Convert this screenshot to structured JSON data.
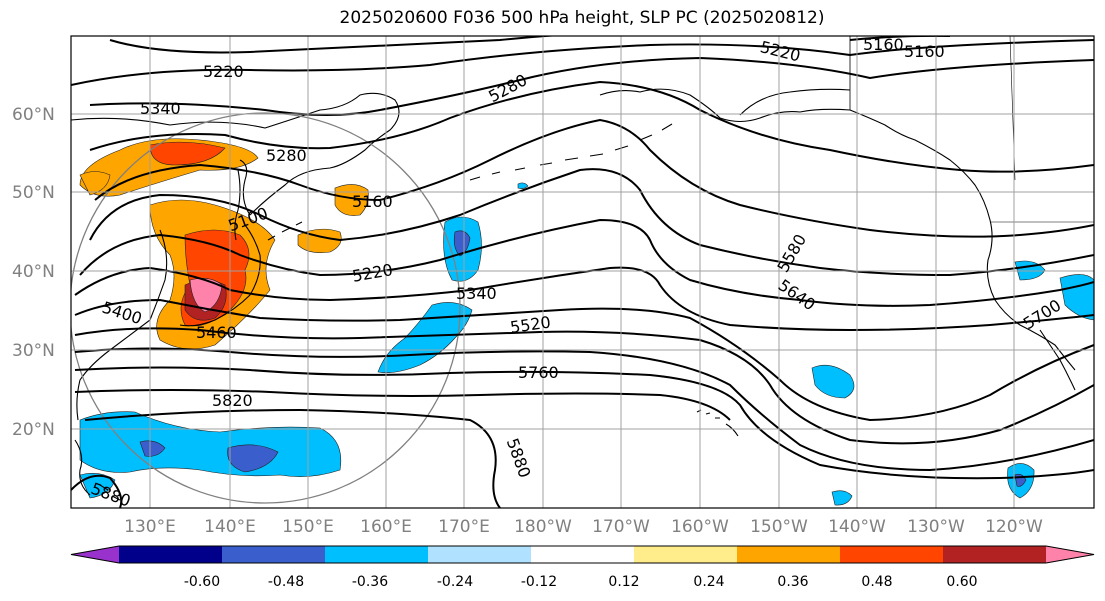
{
  "title": "2025020600 F036 500 hPa height, SLP PC (2025020812)",
  "lat_labels": [
    "20°N",
    "30°N",
    "40°N",
    "50°N",
    "60°N"
  ],
  "lon_labels": [
    "130°E",
    "140°E",
    "150°E",
    "160°E",
    "170°E",
    "180°W",
    "170°W",
    "160°W",
    "150°W",
    "140°W",
    "130°W",
    "120°W"
  ],
  "contour_labels": [
    "5220",
    "5340",
    "5280",
    "5280",
    "5220",
    "5160",
    "5160",
    "5160",
    "5100",
    "5220",
    "5340",
    "5520",
    "5580",
    "5640",
    "5760",
    "5700",
    "5820",
    "5880",
    "5460",
    "5400",
    "5880"
  ],
  "colorbar": {
    "ticks": [
      "-0.60",
      "-0.48",
      "-0.36",
      "-0.24",
      "-0.12",
      "0.12",
      "0.24",
      "0.36",
      "0.48",
      "0.60"
    ],
    "colors": [
      "#9932cc",
      "#00008b",
      "#3a5fcd",
      "#00bfff",
      "#b0e2ff",
      "#ffffff",
      "#ffec8b",
      "#ffa500",
      "#ff4500",
      "#b22222",
      "#ff82ab"
    ]
  },
  "colors": {
    "orange": "#ffa500",
    "red_orange": "#ff4500",
    "dark_red": "#b22222",
    "pink": "#ff82ab",
    "deep_sky_blue": "#00bfff",
    "royal_blue": "#3a5fcd",
    "grid": "#a0a0a0"
  }
}
